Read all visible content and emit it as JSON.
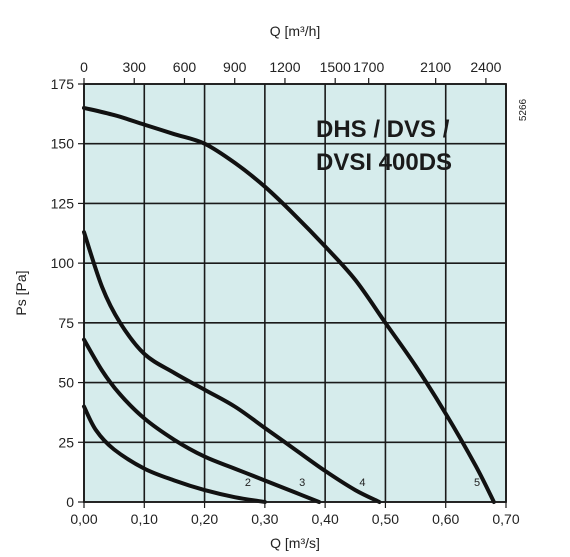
{
  "chart_data": {
    "type": "line",
    "annotation": [
      "DHS / DVS /",
      "DVSI 400DS"
    ],
    "code": "5266",
    "xlabel": "Q [m³/s]",
    "x2label": "Q [m³/h]",
    "ylabel": "Ps [Pa]",
    "xlim": [
      0,
      0.7
    ],
    "ylim": [
      0,
      175
    ],
    "grid": true,
    "colors": {
      "background": "#d6ecec",
      "grid": "#1a1a1a",
      "curve": "#111111"
    },
    "xticks": [
      0,
      0.1,
      0.2,
      0.3,
      0.4,
      0.5,
      0.6,
      0.7
    ],
    "xtick_labels": [
      "0,00",
      "0,10",
      "0,20",
      "0,30",
      "0,40",
      "0,50",
      "0,60",
      "0,70"
    ],
    "yticks": [
      0,
      25,
      50,
      75,
      100,
      125,
      150,
      175
    ],
    "ytick_labels": [
      "0",
      "25",
      "50",
      "75",
      "100",
      "125",
      "150",
      "175"
    ],
    "x2ticks": [
      0,
      300,
      600,
      900,
      1200,
      1500,
      1700,
      2100,
      2400
    ],
    "x2tick_labels": [
      "0",
      "300",
      "600",
      "900",
      "1200",
      "1500",
      "1700",
      "2100",
      "2400"
    ],
    "series": [
      {
        "label": "2",
        "x": [
          0,
          0.02,
          0.05,
          0.1,
          0.15,
          0.2,
          0.25,
          0.3
        ],
        "y": [
          40,
          30,
          22,
          14,
          9,
          5,
          2,
          0
        ]
      },
      {
        "label": "3",
        "x": [
          0,
          0.03,
          0.06,
          0.1,
          0.15,
          0.2,
          0.25,
          0.3,
          0.35,
          0.39
        ],
        "y": [
          68,
          55,
          45,
          35,
          26,
          19,
          14,
          9,
          4,
          0
        ]
      },
      {
        "label": "4",
        "x": [
          0,
          0.03,
          0.06,
          0.1,
          0.15,
          0.2,
          0.25,
          0.3,
          0.35,
          0.4,
          0.45,
          0.49
        ],
        "y": [
          113,
          90,
          75,
          62,
          54,
          47,
          40,
          31,
          22,
          13,
          5,
          0
        ]
      },
      {
        "label": "5",
        "x": [
          0,
          0.05,
          0.1,
          0.15,
          0.2,
          0.25,
          0.3,
          0.35,
          0.4,
          0.45,
          0.5,
          0.55,
          0.6,
          0.65,
          0.68
        ],
        "y": [
          165,
          162,
          158,
          154,
          150,
          142,
          132,
          120,
          107,
          93,
          75,
          57,
          37,
          15,
          0
        ]
      }
    ]
  }
}
